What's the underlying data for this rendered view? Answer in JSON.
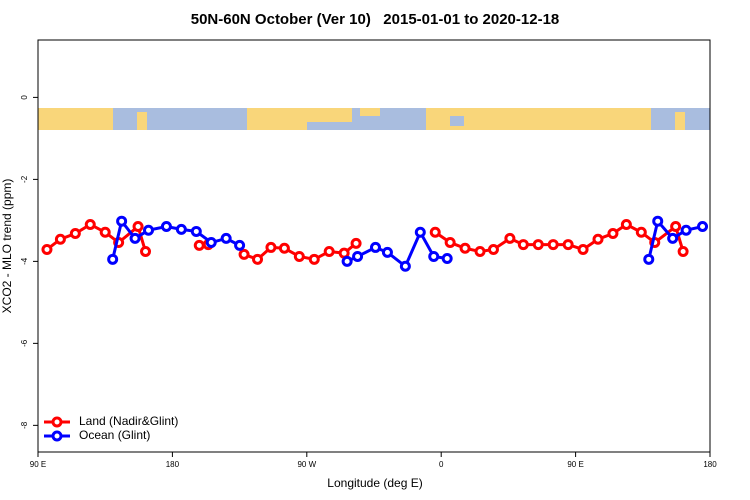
{
  "chart_data": {
    "type": "line",
    "title": "50N-60N October (Ver 10)   2015-01-01 to 2020-12-18",
    "xlabel": "Longitude (deg E)",
    "ylabel": "XCO2 - MLO trend (ppm)",
    "xlim": [
      90,
      540
    ],
    "ylim": [
      -8.65,
      1.4
    ],
    "xticks": [
      {
        "value": 90,
        "label": "90 E"
      },
      180,
      {
        "value": 270,
        "label": "90 W"
      },
      {
        "value": 360,
        "label": "0"
      },
      {
        "value": 450,
        "label": "90 E"
      },
      {
        "value": 540,
        "label": "180"
      }
    ],
    "yticks": [
      0,
      -2,
      -4,
      -6,
      -8
    ],
    "legend": "bottom-left",
    "series": [
      {
        "name": "Land (Nadir&Glint)",
        "color": "#ff0000",
        "x": [
          96,
          105,
          115,
          125,
          135,
          144,
          157,
          162,
          null,
          198,
          204,
          null,
          228,
          237,
          246,
          255,
          265,
          275,
          285,
          295,
          303,
          null,
          356,
          366,
          376,
          386,
          395,
          406,
          415,
          425,
          435,
          445,
          455,
          465,
          475,
          484,
          494,
          503,
          517,
          522
        ],
        "values": [
          -3.71,
          -3.46,
          -3.32,
          -3.1,
          -3.29,
          -3.54,
          -3.15,
          -3.76,
          null,
          -3.61,
          -3.59,
          null,
          -3.83,
          -3.95,
          -3.66,
          -3.68,
          -3.88,
          -3.95,
          -3.76,
          -3.8,
          -3.56,
          null,
          -3.29,
          -3.54,
          -3.68,
          -3.76,
          -3.71,
          -3.44,
          -3.59,
          -3.59,
          -3.59,
          -3.59,
          -3.71,
          -3.46,
          -3.32,
          -3.1,
          -3.29,
          -3.54,
          -3.15,
          -3.76
        ]
      },
      {
        "name": "Ocean (Glint)",
        "color": "#0000ff",
        "x": [
          140,
          146,
          155,
          164,
          176,
          186,
          196,
          206,
          216,
          225,
          null,
          297,
          304,
          316,
          324,
          336,
          346,
          355,
          364,
          null,
          499,
          505,
          515,
          524,
          535
        ],
        "values": [
          -3.95,
          -3.02,
          -3.44,
          -3.24,
          -3.15,
          -3.22,
          -3.27,
          -3.54,
          -3.44,
          -3.61,
          null,
          -4.0,
          -3.88,
          -3.66,
          -3.78,
          -4.12,
          -3.29,
          -3.88,
          -3.93,
          null,
          -3.95,
          -3.02,
          -3.44,
          -3.24,
          -3.15
        ]
      }
    ]
  }
}
